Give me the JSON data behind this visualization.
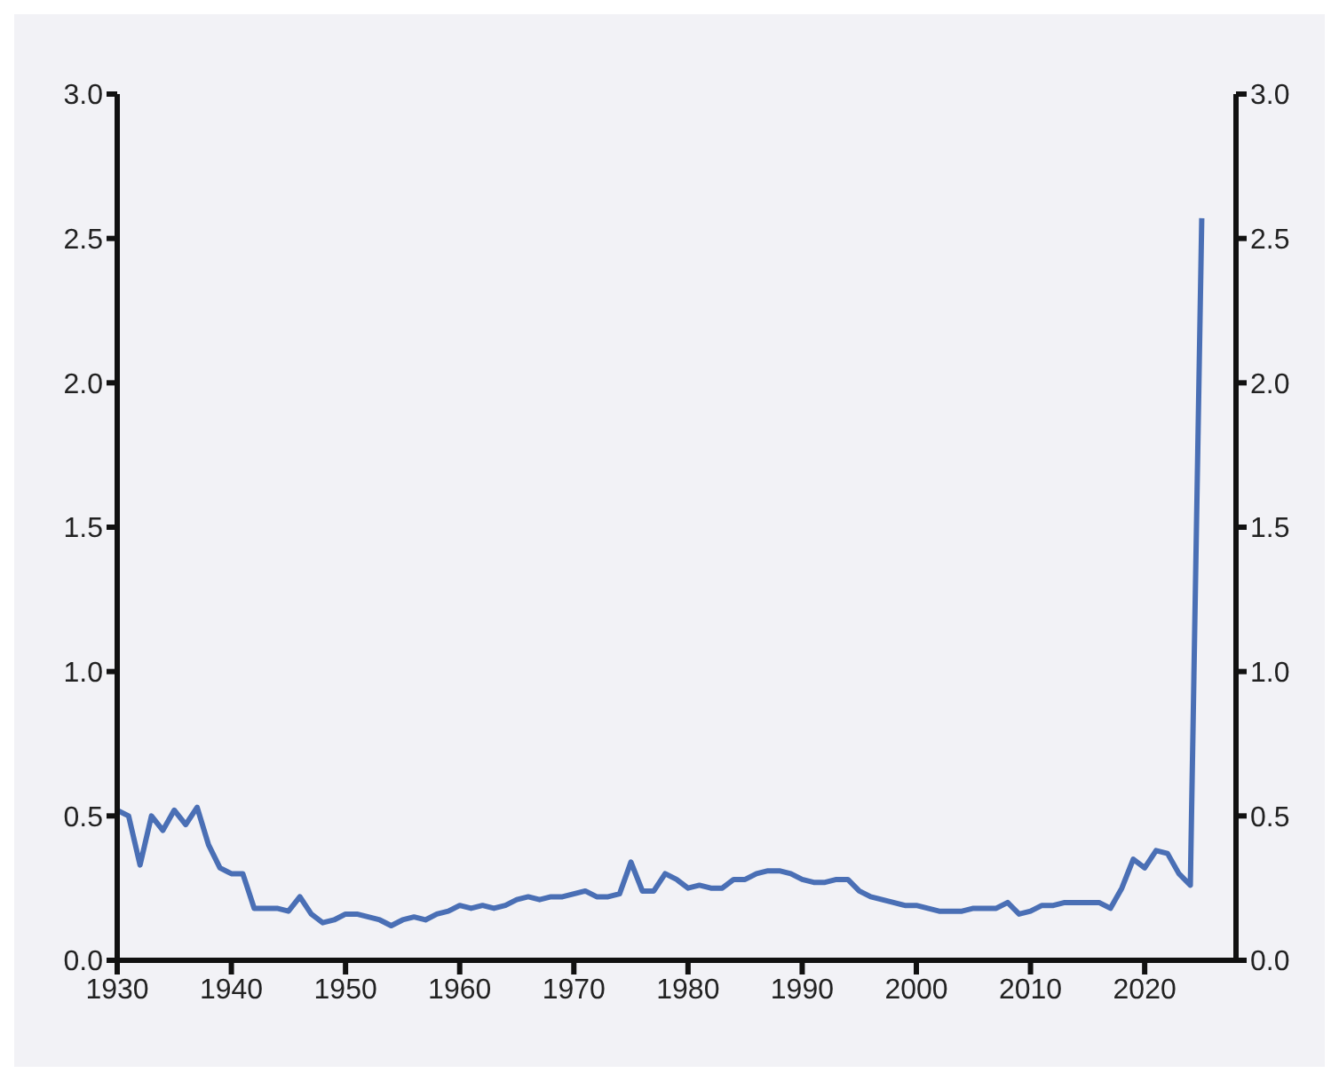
{
  "chart_data": {
    "type": "line",
    "x": [
      1930,
      1931,
      1932,
      1933,
      1934,
      1935,
      1936,
      1937,
      1938,
      1939,
      1940,
      1941,
      1942,
      1943,
      1944,
      1945,
      1946,
      1947,
      1948,
      1949,
      1950,
      1951,
      1952,
      1953,
      1954,
      1955,
      1956,
      1957,
      1958,
      1959,
      1960,
      1961,
      1962,
      1963,
      1964,
      1965,
      1966,
      1967,
      1968,
      1969,
      1970,
      1971,
      1972,
      1973,
      1974,
      1975,
      1976,
      1977,
      1978,
      1979,
      1980,
      1981,
      1982,
      1983,
      1984,
      1985,
      1986,
      1987,
      1988,
      1989,
      1990,
      1991,
      1992,
      1993,
      1994,
      1995,
      1996,
      1997,
      1998,
      1999,
      2000,
      2001,
      2002,
      2003,
      2004,
      2005,
      2006,
      2007,
      2008,
      2009,
      2010,
      2011,
      2012,
      2013,
      2014,
      2015,
      2016,
      2017,
      2018,
      2019,
      2020,
      2021,
      2022,
      2023,
      2024,
      2025
    ],
    "series": [
      {
        "color": "#4a6fb5",
        "values": [
          0.52,
          0.5,
          0.33,
          0.5,
          0.45,
          0.52,
          0.47,
          0.53,
          0.4,
          0.32,
          0.3,
          0.3,
          0.18,
          0.18,
          0.18,
          0.17,
          0.22,
          0.16,
          0.13,
          0.14,
          0.16,
          0.16,
          0.15,
          0.14,
          0.12,
          0.14,
          0.15,
          0.14,
          0.16,
          0.17,
          0.19,
          0.18,
          0.19,
          0.18,
          0.19,
          0.21,
          0.22,
          0.21,
          0.22,
          0.22,
          0.23,
          0.24,
          0.22,
          0.22,
          0.23,
          0.34,
          0.24,
          0.24,
          0.3,
          0.28,
          0.25,
          0.26,
          0.25,
          0.25,
          0.28,
          0.28,
          0.3,
          0.31,
          0.31,
          0.3,
          0.28,
          0.27,
          0.27,
          0.28,
          0.28,
          0.24,
          0.22,
          0.21,
          0.2,
          0.19,
          0.19,
          0.18,
          0.17,
          0.17,
          0.17,
          0.18,
          0.18,
          0.18,
          0.2,
          0.16,
          0.17,
          0.19,
          0.19,
          0.2,
          0.2,
          0.2,
          0.2,
          0.18,
          0.25,
          0.35,
          0.32,
          0.38,
          0.37,
          0.3,
          0.26,
          2.57
        ]
      }
    ],
    "xlim": [
      1930,
      2028
    ],
    "xticks": [
      1930,
      1940,
      1950,
      1960,
      1970,
      1980,
      1990,
      2000,
      2010,
      2020
    ],
    "ylim": [
      0,
      3
    ],
    "yticks": [
      {
        "value": 0,
        "label": "0.0"
      },
      {
        "value": 0.5,
        "label": "0.5"
      },
      {
        "value": 1,
        "label": "1.0"
      },
      {
        "value": 1.5,
        "label": "1.5"
      },
      {
        "value": 2,
        "label": "2.0"
      },
      {
        "value": 2.5,
        "label": "2.5"
      },
      {
        "value": 3,
        "label": "3.0"
      }
    ],
    "y2lim": [
      0,
      3
    ],
    "y2ticks": [
      {
        "value": 0,
        "label": "0.0"
      },
      {
        "value": 0.5,
        "label": "0.5"
      },
      {
        "value": 1,
        "label": "1.0"
      },
      {
        "value": 1.5,
        "label": "1.5"
      },
      {
        "value": 2,
        "label": "2.0"
      },
      {
        "value": 2.5,
        "label": "2.5"
      },
      {
        "value": 3,
        "label": "3.0"
      }
    ],
    "grid": false,
    "legend": false,
    "marker": "none",
    "line_style": "solid"
  }
}
